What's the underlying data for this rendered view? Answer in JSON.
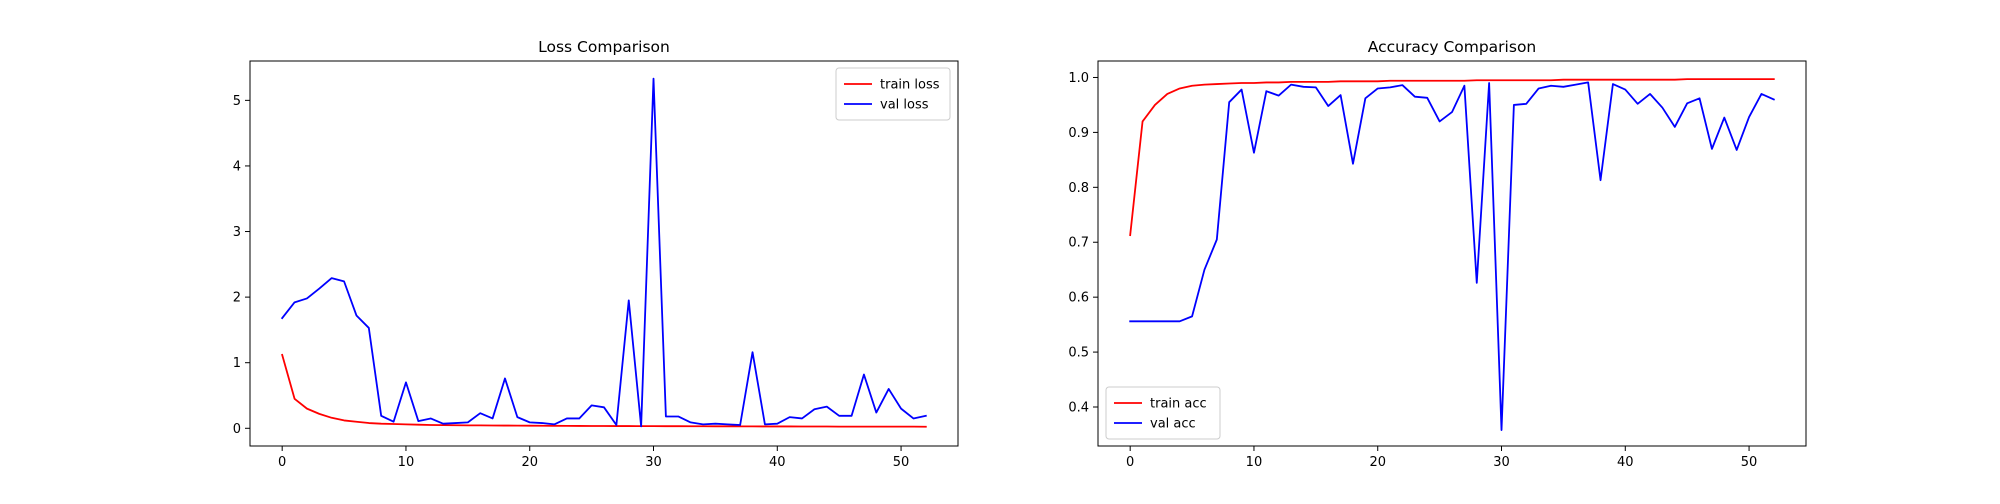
{
  "chart_data": [
    {
      "type": "line",
      "title": "Loss Comparison",
      "xlabel": "",
      "ylabel": "",
      "xlim": [
        -2.6,
        54.6
      ],
      "ylim": [
        -0.27,
        5.6
      ],
      "xticks": [
        0,
        10,
        20,
        30,
        40,
        50
      ],
      "yticks": [
        0,
        1,
        2,
        3,
        4,
        5
      ],
      "grid": false,
      "legend_placement": "upper right",
      "series": [
        {
          "name": "train loss",
          "color": "#ff0000",
          "values": [
            1.12,
            0.45,
            0.3,
            0.22,
            0.16,
            0.12,
            0.1,
            0.08,
            0.07,
            0.065,
            0.06,
            0.055,
            0.05,
            0.048,
            0.046,
            0.045,
            0.044,
            0.043,
            0.042,
            0.041,
            0.04,
            0.039,
            0.038,
            0.037,
            0.036,
            0.035,
            0.035,
            0.034,
            0.034,
            0.033,
            0.033,
            0.032,
            0.032,
            0.031,
            0.031,
            0.03,
            0.03,
            0.029,
            0.029,
            0.028,
            0.028,
            0.028,
            0.027,
            0.027,
            0.027,
            0.026,
            0.026,
            0.026,
            0.025,
            0.025,
            0.025,
            0.025,
            0.024
          ]
        },
        {
          "name": "val loss",
          "color": "#0000ff",
          "values": [
            1.68,
            1.92,
            1.98,
            2.13,
            2.29,
            2.24,
            1.72,
            1.53,
            0.19,
            0.1,
            0.7,
            0.11,
            0.15,
            0.07,
            0.08,
            0.09,
            0.23,
            0.15,
            0.76,
            0.17,
            0.09,
            0.08,
            0.06,
            0.15,
            0.15,
            0.35,
            0.32,
            0.05,
            1.95,
            0.03,
            5.33,
            0.18,
            0.18,
            0.09,
            0.06,
            0.07,
            0.06,
            0.05,
            1.16,
            0.06,
            0.07,
            0.17,
            0.15,
            0.29,
            0.33,
            0.19,
            0.19,
            0.82,
            0.24,
            0.6,
            0.3,
            0.15,
            0.19
          ]
        }
      ]
    },
    {
      "type": "line",
      "title": "Accuracy Comparison",
      "xlabel": "",
      "ylabel": "",
      "xlim": [
        -2.6,
        54.6
      ],
      "ylim": [
        0.329,
        1.03
      ],
      "xticks": [
        0,
        10,
        20,
        30,
        40,
        50
      ],
      "yticks": [
        0.4,
        0.5,
        0.6,
        0.7,
        0.8,
        0.9,
        1.0
      ],
      "ytick_labels": [
        "0.4",
        "0.5",
        "0.6",
        "0.7",
        "0.8",
        "0.9",
        "1.0"
      ],
      "grid": false,
      "legend_placement": "lower left",
      "series": [
        {
          "name": "train acc",
          "color": "#ff0000",
          "values": [
            0.713,
            0.92,
            0.95,
            0.97,
            0.98,
            0.985,
            0.987,
            0.988,
            0.989,
            0.99,
            0.99,
            0.991,
            0.991,
            0.992,
            0.992,
            0.992,
            0.992,
            0.993,
            0.993,
            0.993,
            0.993,
            0.994,
            0.994,
            0.994,
            0.994,
            0.994,
            0.994,
            0.994,
            0.995,
            0.995,
            0.995,
            0.995,
            0.995,
            0.995,
            0.995,
            0.996,
            0.996,
            0.996,
            0.996,
            0.996,
            0.996,
            0.996,
            0.996,
            0.996,
            0.996,
            0.997,
            0.997,
            0.997,
            0.997,
            0.997,
            0.997,
            0.997,
            0.997
          ]
        },
        {
          "name": "val acc",
          "color": "#0000ff",
          "values": [
            0.556,
            0.556,
            0.556,
            0.556,
            0.556,
            0.565,
            0.65,
            0.705,
            0.955,
            0.978,
            0.863,
            0.975,
            0.967,
            0.987,
            0.983,
            0.982,
            0.948,
            0.968,
            0.843,
            0.962,
            0.98,
            0.982,
            0.986,
            0.965,
            0.963,
            0.92,
            0.937,
            0.985,
            0.626,
            0.99,
            0.358,
            0.95,
            0.952,
            0.98,
            0.985,
            0.983,
            0.987,
            0.991,
            0.813,
            0.988,
            0.978,
            0.952,
            0.97,
            0.945,
            0.91,
            0.953,
            0.962,
            0.87,
            0.927,
            0.868,
            0.928,
            0.97,
            0.96
          ]
        }
      ]
    }
  ]
}
